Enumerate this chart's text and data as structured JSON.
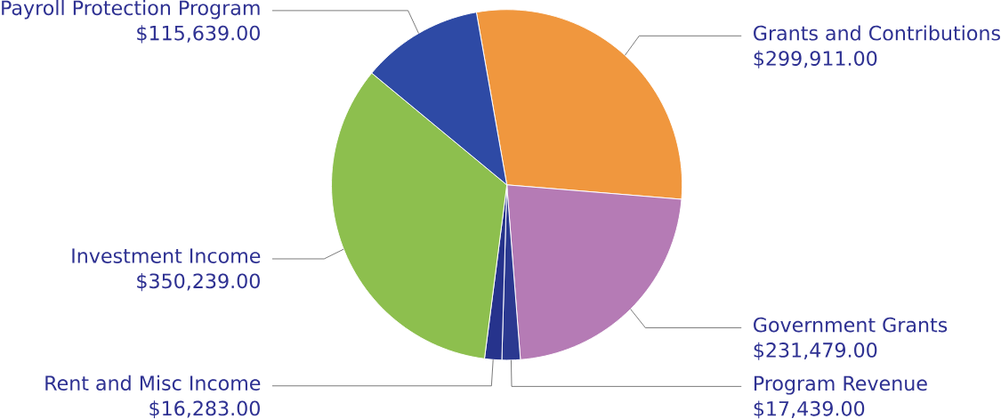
{
  "chart_data": {
    "type": "pie",
    "categories": [
      "Grants and Contributions",
      "Government Grants",
      "Program Revenue",
      "Rent and Misc Income",
      "Investment Income",
      "Payroll Protection Program"
    ],
    "values": [
      299911,
      231479,
      17439,
      16283,
      350239,
      115639
    ],
    "value_labels": [
      "$299,911.00",
      "$231,479.00",
      "$17,439.00",
      "$16,283.00",
      "$350,239.00",
      "$115,639.00"
    ],
    "colors": [
      "#f0973e",
      "#b57bb5",
      "#2b3990",
      "#26338c",
      "#8dbf4e",
      "#2e4aa5"
    ]
  }
}
